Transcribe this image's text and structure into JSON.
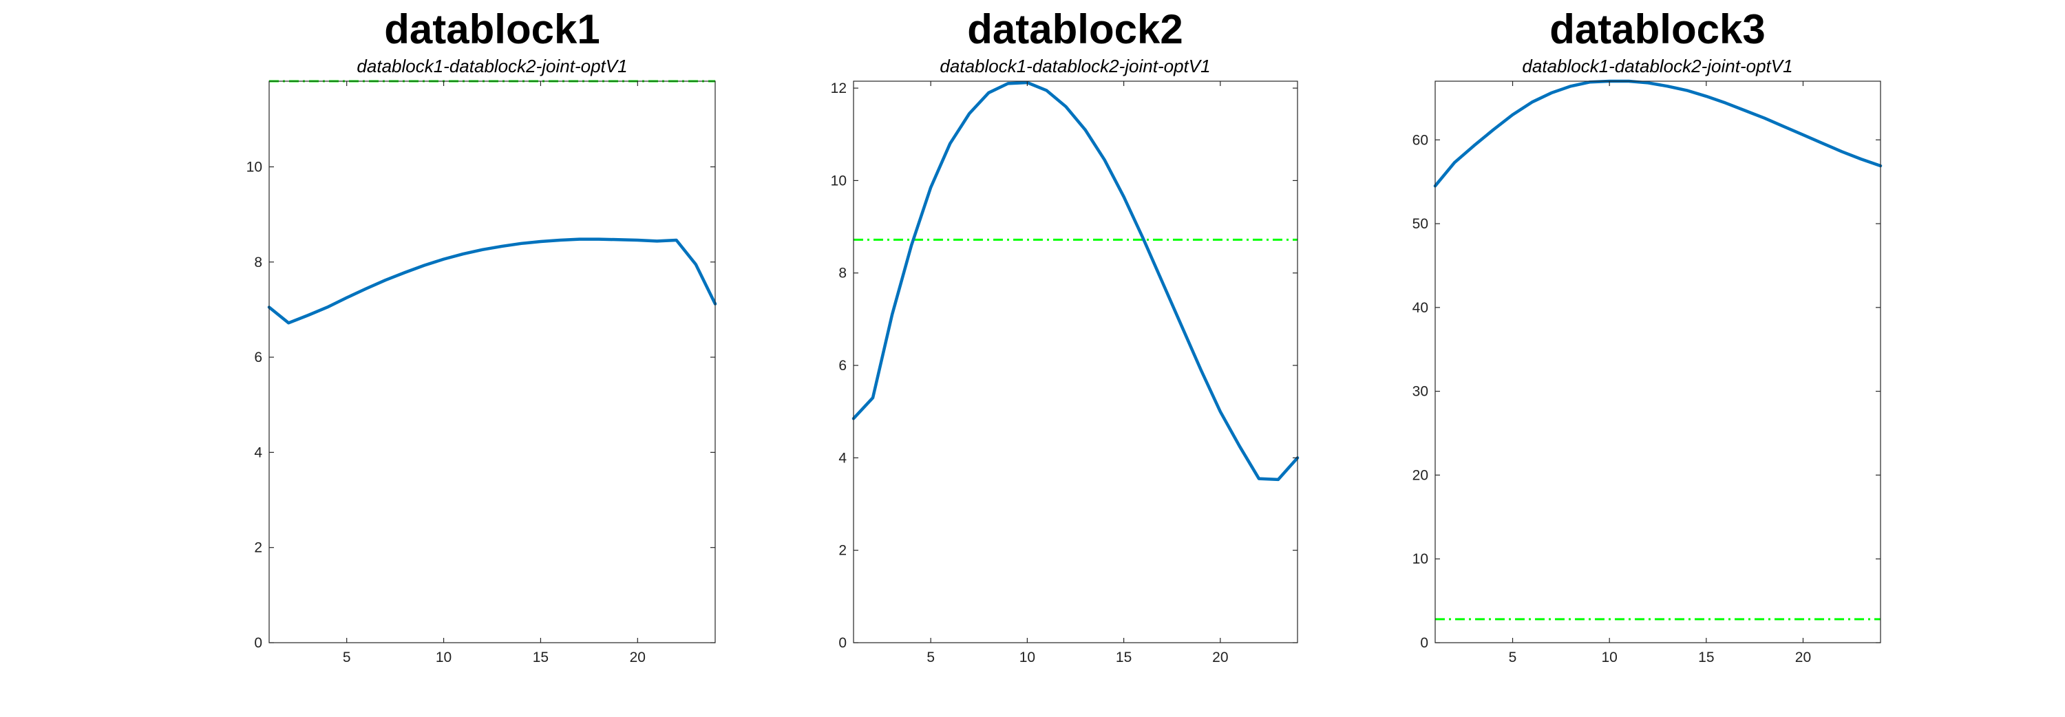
{
  "colors": {
    "series_line": "#0072BD",
    "reference_line": "#00FF00",
    "axes": "#262626",
    "background": "#FFFFFF"
  },
  "chart_data": [
    {
      "type": "line",
      "title": "datablock1",
      "subtitle": "datablock1-datablock2-joint-optV1",
      "xlabel": "",
      "ylabel": "",
      "xlim": [
        1,
        24
      ],
      "ylim": [
        0,
        11.8
      ],
      "xticks": [
        5,
        10,
        15,
        20
      ],
      "yticks": [
        0,
        2,
        4,
        6,
        8,
        10
      ],
      "grid": false,
      "x": [
        1,
        2,
        3,
        4,
        5,
        6,
        7,
        8,
        9,
        10,
        11,
        12,
        13,
        14,
        15,
        16,
        17,
        18,
        19,
        20,
        21,
        22,
        23,
        24
      ],
      "series": [
        {
          "values": [
            7.05,
            6.72,
            6.88,
            7.05,
            7.25,
            7.44,
            7.62,
            7.78,
            7.93,
            8.06,
            8.17,
            8.26,
            8.33,
            8.39,
            8.43,
            8.46,
            8.48,
            8.48,
            8.47,
            8.46,
            8.44,
            8.46,
            7.95,
            7.12
          ],
          "style": "solid"
        }
      ],
      "reference_line": {
        "y": 11.8,
        "style": "dash-dot"
      }
    },
    {
      "type": "line",
      "title": "datablock2",
      "subtitle": "datablock1-datablock2-joint-optV1",
      "xlabel": "",
      "ylabel": "",
      "xlim": [
        1,
        24
      ],
      "ylim": [
        0,
        12.15
      ],
      "xticks": [
        5,
        10,
        15,
        20
      ],
      "yticks": [
        0,
        2,
        4,
        6,
        8,
        10,
        12
      ],
      "grid": false,
      "x": [
        1,
        2,
        3,
        4,
        5,
        6,
        7,
        8,
        9,
        10,
        11,
        12,
        13,
        14,
        15,
        16,
        17,
        18,
        19,
        20,
        21,
        22,
        23,
        24
      ],
      "series": [
        {
          "values": [
            4.85,
            5.3,
            7.1,
            8.6,
            9.85,
            10.8,
            11.45,
            11.9,
            12.1,
            12.12,
            11.95,
            11.6,
            11.1,
            10.45,
            9.65,
            8.75,
            7.8,
            6.85,
            5.9,
            5.0,
            4.25,
            3.55,
            3.53,
            4.0
          ],
          "style": "solid"
        }
      ],
      "reference_line": {
        "y": 8.72,
        "style": "dash-dot"
      }
    },
    {
      "type": "line",
      "title": "datablock3",
      "subtitle": "datablock1-datablock2-joint-optV1",
      "xlabel": "",
      "ylabel": "",
      "xlim": [
        1,
        24
      ],
      "ylim": [
        0,
        67
      ],
      "xticks": [
        5,
        10,
        15,
        20
      ],
      "yticks": [
        0,
        10,
        20,
        30,
        40,
        50,
        60
      ],
      "grid": false,
      "x": [
        1,
        2,
        3,
        4,
        5,
        6,
        7,
        8,
        9,
        10,
        11,
        12,
        13,
        14,
        15,
        16,
        17,
        18,
        19,
        20,
        21,
        22,
        23,
        24
      ],
      "series": [
        {
          "values": [
            54.5,
            57.3,
            59.3,
            61.2,
            63.0,
            64.5,
            65.6,
            66.4,
            66.9,
            67.0,
            67.0,
            66.8,
            66.4,
            65.9,
            65.2,
            64.4,
            63.5,
            62.6,
            61.6,
            60.6,
            59.6,
            58.6,
            57.7,
            56.9
          ],
          "style": "solid"
        }
      ],
      "reference_line": {
        "y": 2.8,
        "style": "dash-dot"
      }
    }
  ]
}
